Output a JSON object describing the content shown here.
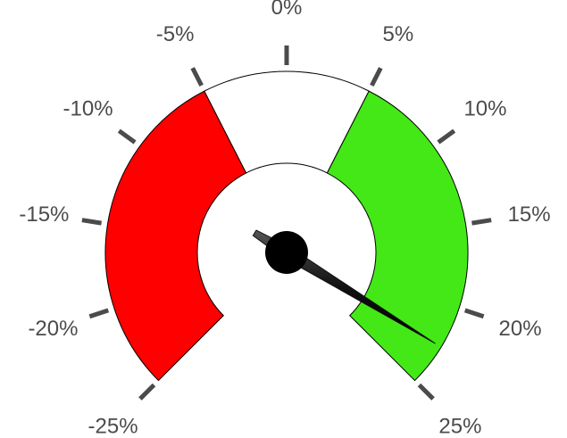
{
  "chart_data": {
    "type": "gauge",
    "min": -25,
    "max": 25,
    "value": 22.5,
    "tick_step": 5,
    "tick_labels": [
      "-25%",
      "-20%",
      "-15%",
      "-10%",
      "-5%",
      "0%",
      "5%",
      "10%",
      "15%",
      "20%",
      "25%"
    ],
    "bands": [
      {
        "from": -25,
        "to": -5,
        "color": "#ff0000"
      },
      {
        "from": -5,
        "to": 5,
        "color": "#ffffff"
      },
      {
        "from": 5,
        "to": 25,
        "color": "#44e817"
      }
    ],
    "colors": {
      "ticks": "#4b4b4b",
      "labels": "#4b4b4b",
      "needle": "#111111",
      "band_stroke": "#000000"
    }
  }
}
